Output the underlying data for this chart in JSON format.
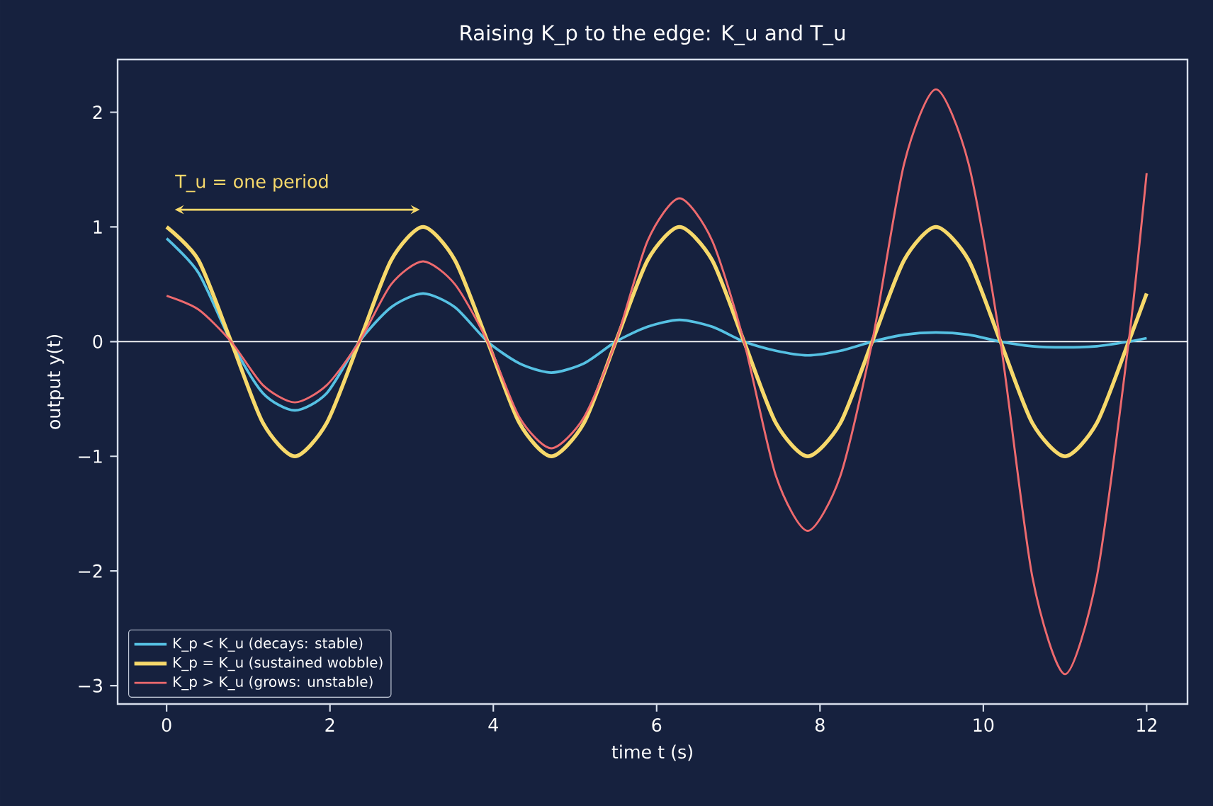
{
  "chart_data": {
    "type": "line",
    "title": "Raising K_p to the edge: K_u and T_u",
    "xlabel": "time  t (s)",
    "ylabel": "output  y(t)",
    "x": [
      0,
      0.39,
      0.79,
      1.18,
      1.57,
      1.96,
      2.36,
      2.75,
      3.14,
      3.53,
      3.93,
      4.32,
      4.71,
      5.11,
      5.5,
      5.89,
      6.28,
      6.68,
      7.07,
      7.46,
      7.85,
      8.25,
      8.64,
      9.03,
      9.42,
      9.82,
      10.21,
      10.6,
      11.0,
      11.39,
      11.78,
      12
    ],
    "series": [
      {
        "name": "K_p < K_u  (decays: stable)",
        "color": "#56c1e3",
        "values": [
          0.9,
          0.6,
          0,
          -0.45,
          -0.6,
          -0.45,
          0,
          0.3,
          0.42,
          0.3,
          0,
          -0.19,
          -0.27,
          -0.19,
          0,
          0.13,
          0.19,
          0.13,
          0,
          -0.08,
          -0.12,
          -0.08,
          0,
          0.06,
          0.08,
          0.06,
          0,
          -0.04,
          -0.05,
          -0.04,
          0,
          0.03
        ]
      },
      {
        "name": "K_p = K_u  (sustained wobble)",
        "color": "#f7d96b",
        "values": [
          1,
          0.71,
          0,
          -0.71,
          -1,
          -0.71,
          0,
          0.71,
          1,
          0.71,
          0,
          -0.71,
          -1,
          -0.71,
          0,
          0.71,
          1,
          0.71,
          0,
          -0.71,
          -1,
          -0.71,
          0,
          0.71,
          1,
          0.71,
          0,
          -0.71,
          -1,
          -0.71,
          0,
          0.42
        ]
      },
      {
        "name": "K_p > K_u  (grows: unstable)",
        "color": "#ee6a6e",
        "values": [
          0.4,
          0.28,
          0,
          -0.38,
          -0.53,
          -0.38,
          0,
          0.5,
          0.7,
          0.5,
          0,
          -0.66,
          -0.93,
          -0.66,
          0,
          0.88,
          1.25,
          0.88,
          0,
          -1.17,
          -1.65,
          -1.17,
          0,
          1.55,
          2.2,
          1.55,
          0,
          -2.05,
          -2.9,
          -2.05,
          0,
          1.47
        ]
      }
    ],
    "xlim": [
      -0.6,
      12.5
    ],
    "ylim": [
      -3.16,
      2.46
    ],
    "xticks": [
      0,
      2,
      4,
      6,
      8,
      10,
      12
    ],
    "yticks": [
      {
        "value": -3,
        "label": "−3"
      },
      {
        "value": -2,
        "label": "−2"
      },
      {
        "value": -1,
        "label": "−1"
      },
      0,
      1,
      2
    ],
    "ref_lines": [
      {
        "axis": "y",
        "value": 0,
        "color": "#ffffff"
      }
    ],
    "annotations": [
      "T_u = one period"
    ],
    "legend": "bottom left",
    "grid": false,
    "marker": "none",
    "line_style": "solid"
  }
}
